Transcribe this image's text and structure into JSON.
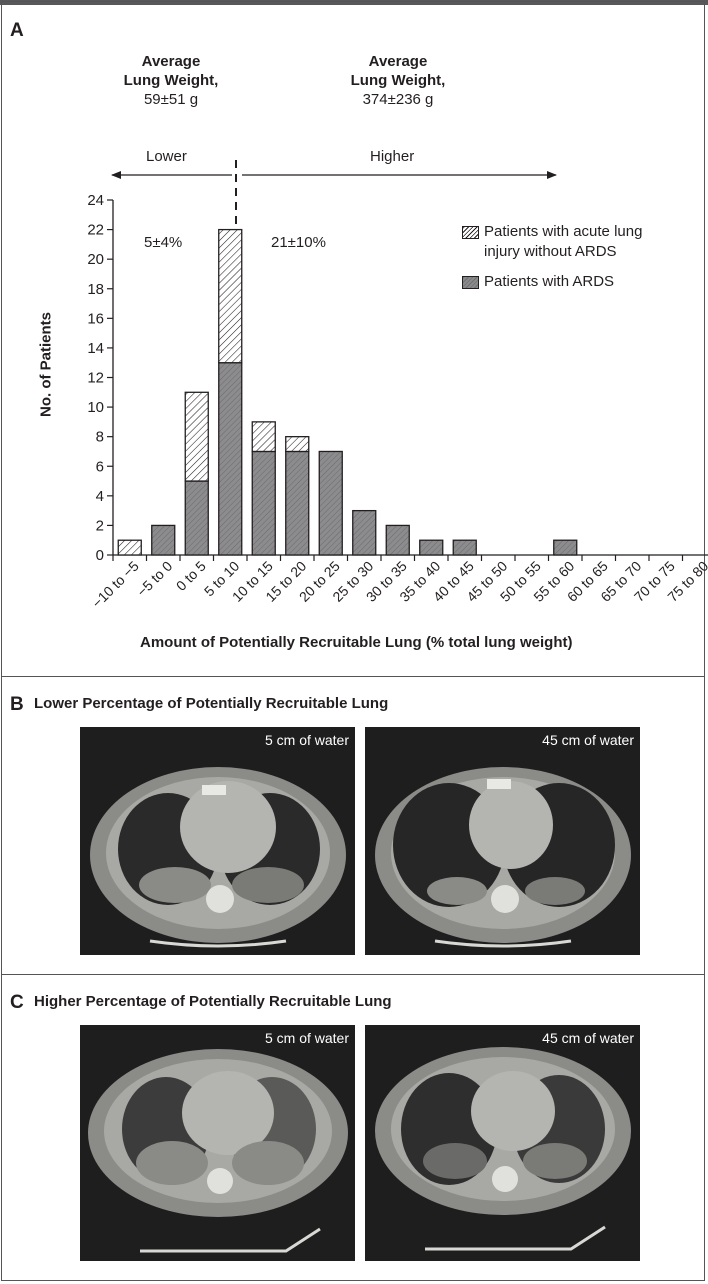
{
  "panel_a": {
    "letter": "A",
    "left_weight": {
      "title_line1": "Average",
      "title_line2": "Lung Weight,",
      "value": "59±51 g"
    },
    "right_weight": {
      "title_line1": "Average",
      "title_line2": "Lung Weight,",
      "value": "374±236 g"
    },
    "arrow_lower": "Lower",
    "arrow_higher": "Higher",
    "pct_lower": "5±4%",
    "pct_higher": "21±10%",
    "legend": {
      "hatched_line1": "Patients with acute lung",
      "hatched_line2": "injury without ARDS",
      "solid": "Patients with ARDS"
    }
  },
  "chart_data": {
    "type": "bar",
    "stacked": true,
    "xlabel": "Amount of Potentially Recruitable Lung (% total lung weight)",
    "ylabel": "No. of Patients",
    "ylim": [
      0,
      24
    ],
    "yticks": [
      0,
      2,
      4,
      6,
      8,
      10,
      12,
      14,
      16,
      18,
      20,
      22,
      24
    ],
    "categories": [
      "−10 to −5",
      "−5 to 0",
      "0 to 5",
      "5 to 10",
      "10 to 15",
      "15 to 20",
      "20 to 25",
      "25 to 30",
      "30 to 35",
      "35 to 40",
      "40 to 45",
      "45 to 50",
      "50 to 55",
      "55 to 60",
      "60 to 65",
      "65 to 70",
      "70 to 75",
      "75 to 80"
    ],
    "series": [
      {
        "name": "Patients with ARDS",
        "values": [
          0,
          2,
          5,
          13,
          7,
          7,
          7,
          3,
          2,
          1,
          1,
          0,
          0,
          1,
          0,
          0,
          0,
          0
        ],
        "color": "#8a8a8c"
      },
      {
        "name": "Patients with acute lung injury without ARDS",
        "values": [
          1,
          0,
          6,
          9,
          2,
          1,
          0,
          0,
          0,
          0,
          0,
          0,
          0,
          0,
          0,
          0,
          0,
          0
        ],
        "color": "#ffffff"
      }
    ],
    "grid": false,
    "legend_position": "top-right"
  },
  "panel_b": {
    "letter": "B",
    "title": "Lower Percentage of Potentially Recruitable Lung",
    "ct_left_label": "5 cm of water",
    "ct_right_label": "45 cm of water"
  },
  "panel_c": {
    "letter": "C",
    "title": "Higher Percentage of Potentially Recruitable Lung",
    "ct_left_label": "5 cm of water",
    "ct_right_label": "45 cm of water"
  }
}
